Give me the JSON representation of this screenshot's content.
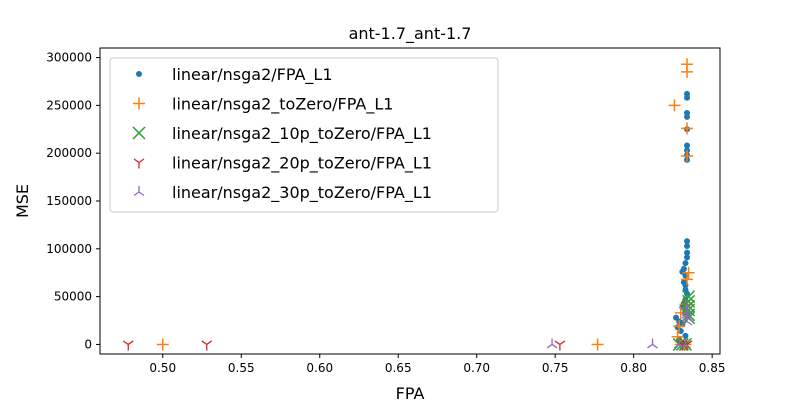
{
  "chart_data": {
    "type": "scatter",
    "title": "ant-1.7_ant-1.7",
    "xlabel": "FPA",
    "ylabel": "MSE",
    "xlim": [
      0.46,
      0.855
    ],
    "ylim": [
      -10000,
      310000
    ],
    "x_ticks": [
      0.5,
      0.55,
      0.6,
      0.65,
      0.7,
      0.75,
      0.8,
      0.85
    ],
    "x_tick_labels": [
      "0.50",
      "0.55",
      "0.60",
      "0.65",
      "0.70",
      "0.75",
      "0.80",
      "0.85"
    ],
    "y_ticks": [
      0,
      50000,
      100000,
      150000,
      200000,
      250000,
      300000
    ],
    "y_tick_labels": [
      "0",
      "50000",
      "100000",
      "150000",
      "200000",
      "250000",
      "300000"
    ],
    "grid": false,
    "legend_position": "top-left",
    "series": [
      {
        "name": "linear/nsga2/FPA_L1",
        "marker": "dot",
        "color": "#1f77b4",
        "points": [
          [
            0.834,
            262000
          ],
          [
            0.834,
            258000
          ],
          [
            0.834,
            242000
          ],
          [
            0.834,
            238000
          ],
          [
            0.834,
            225000
          ],
          [
            0.834,
            208000
          ],
          [
            0.834,
            203000
          ],
          [
            0.834,
            198000
          ],
          [
            0.834,
            193000
          ],
          [
            0.834,
            108000
          ],
          [
            0.834,
            103000
          ],
          [
            0.834,
            96000
          ],
          [
            0.834,
            91000
          ],
          [
            0.833,
            85000
          ],
          [
            0.832,
            79000
          ],
          [
            0.831,
            76000
          ],
          [
            0.833,
            72000
          ],
          [
            0.832,
            65000
          ],
          [
            0.833,
            62000
          ],
          [
            0.833,
            57000
          ],
          [
            0.834,
            53000
          ],
          [
            0.833,
            47000
          ],
          [
            0.832,
            43000
          ],
          [
            0.831,
            39000
          ],
          [
            0.833,
            35000
          ],
          [
            0.834,
            32000
          ],
          [
            0.827,
            28000
          ],
          [
            0.829,
            24000
          ],
          [
            0.831,
            21000
          ],
          [
            0.828,
            18000
          ],
          [
            0.83,
            14000
          ],
          [
            0.833,
            9000
          ],
          [
            0.829,
            5000
          ],
          [
            0.831,
            1500
          ]
        ]
      },
      {
        "name": "linear/nsga2_toZero/FPA_L1",
        "marker": "plus",
        "color": "#ff7f0e",
        "points": [
          [
            0.834,
            293000
          ],
          [
            0.834,
            285000
          ],
          [
            0.826,
            250000
          ],
          [
            0.834,
            226000
          ],
          [
            0.834,
            197000
          ],
          [
            0.835,
            75000
          ],
          [
            0.834,
            68000
          ],
          [
            0.833,
            42000
          ],
          [
            0.83,
            33000
          ],
          [
            0.829,
            19000
          ],
          [
            0.828,
            8000
          ],
          [
            0.777,
            0
          ],
          [
            0.5,
            0
          ],
          [
            0.833,
            0
          ],
          [
            0.83,
            0
          ]
        ]
      },
      {
        "name": "linear/nsga2_10p_toZero/FPA_L1",
        "marker": "x",
        "color": "#2ca02c",
        "points": [
          [
            0.835,
            50000
          ],
          [
            0.835,
            45000
          ],
          [
            0.835,
            40000
          ],
          [
            0.835,
            36000
          ],
          [
            0.835,
            31000
          ],
          [
            0.835,
            28000
          ],
          [
            0.833,
            0
          ],
          [
            0.829,
            0
          ],
          [
            0.831,
            0
          ]
        ]
      },
      {
        "name": "linear/nsga2_20p_toZero/FPA_L1",
        "marker": "tri_down",
        "color": "#d62728",
        "points": [
          [
            0.478,
            0
          ],
          [
            0.528,
            0
          ],
          [
            0.753,
            0
          ],
          [
            0.831,
            0
          ],
          [
            0.834,
            0
          ]
        ]
      },
      {
        "name": "linear/nsga2_30p_toZero/FPA_L1",
        "marker": "tri_up",
        "color": "#9467bd",
        "points": [
          [
            0.834,
            40000
          ],
          [
            0.834,
            35000
          ],
          [
            0.834,
            31000
          ],
          [
            0.834,
            28000
          ],
          [
            0.834,
            24000
          ],
          [
            0.748,
            0
          ],
          [
            0.812,
            0
          ],
          [
            0.829,
            0
          ],
          [
            0.833,
            0
          ]
        ]
      }
    ]
  }
}
